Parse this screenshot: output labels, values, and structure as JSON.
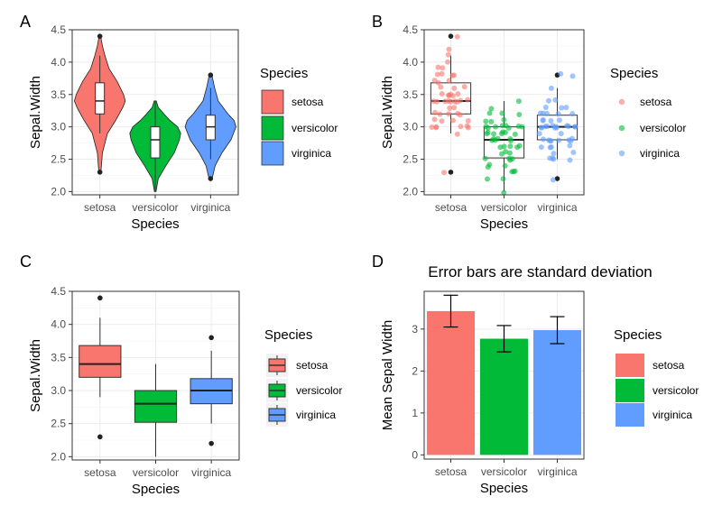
{
  "species_colors": {
    "setosa": "#F8766D",
    "versicolor": "#00BA38",
    "virginica": "#619CFF"
  },
  "panel_labels": [
    "A",
    "B",
    "C",
    "D"
  ],
  "chart_data": [
    {
      "panel": "A",
      "type": "violin",
      "title": "",
      "xlabel": "Species",
      "ylabel": "Sepal.Width",
      "categories": [
        "setosa",
        "versicolor",
        "virginica"
      ],
      "ylim": [
        1.95,
        4.5
      ],
      "yticks": [
        2.0,
        2.5,
        3.0,
        3.5,
        4.0,
        4.5
      ],
      "ytick_labels": [
        "2.0",
        "2.5",
        "3.0",
        "3.5",
        "4.0",
        "4.5"
      ],
      "grid": true,
      "legend": {
        "title": "Species",
        "position": "right",
        "entries": [
          "setosa",
          "versicolor",
          "virginica"
        ]
      },
      "violins": [
        {
          "name": "setosa",
          "profile": [
            [
              2.3,
              0.04
            ],
            [
              2.6,
              0.1
            ],
            [
              2.9,
              0.3
            ],
            [
              3.1,
              0.62
            ],
            [
              3.3,
              0.9
            ],
            [
              3.4,
              1.0
            ],
            [
              3.5,
              0.93
            ],
            [
              3.7,
              0.68
            ],
            [
              3.9,
              0.36
            ],
            [
              4.1,
              0.2
            ],
            [
              4.25,
              0.1
            ],
            [
              4.4,
              0.03
            ]
          ]
        },
        {
          "name": "versicolor",
          "profile": [
            [
              2.0,
              0.03
            ],
            [
              2.2,
              0.12
            ],
            [
              2.4,
              0.42
            ],
            [
              2.6,
              0.75
            ],
            [
              2.8,
              0.95
            ],
            [
              2.9,
              1.0
            ],
            [
              3.0,
              0.88
            ],
            [
              3.1,
              0.58
            ],
            [
              3.2,
              0.34
            ],
            [
              3.3,
              0.12
            ],
            [
              3.4,
              0.04
            ]
          ]
        },
        {
          "name": "virginica",
          "profile": [
            [
              2.2,
              0.06
            ],
            [
              2.4,
              0.18
            ],
            [
              2.6,
              0.45
            ],
            [
              2.8,
              0.8
            ],
            [
              3.0,
              1.0
            ],
            [
              3.1,
              0.92
            ],
            [
              3.2,
              0.68
            ],
            [
              3.4,
              0.3
            ],
            [
              3.6,
              0.16
            ],
            [
              3.8,
              0.05
            ]
          ]
        }
      ],
      "boxes": [
        {
          "name": "setosa",
          "min": 2.9,
          "q1": 3.2,
          "median": 3.4,
          "q3": 3.68,
          "max": 4.1,
          "outliers": [
            2.3,
            4.4
          ]
        },
        {
          "name": "versicolor",
          "min": 2.0,
          "q1": 2.52,
          "median": 2.8,
          "q3": 3.0,
          "max": 3.4,
          "outliers": []
        },
        {
          "name": "virginica",
          "min": 2.5,
          "q1": 2.8,
          "median": 3.0,
          "q3": 3.18,
          "max": 3.6,
          "outliers": [
            2.2,
            3.8
          ]
        }
      ]
    },
    {
      "panel": "B",
      "type": "box+jitter",
      "title": "",
      "xlabel": "Species",
      "ylabel": "Sepal.Width",
      "categories": [
        "setosa",
        "versicolor",
        "virginica"
      ],
      "ylim": [
        1.95,
        4.5
      ],
      "yticks": [
        2.0,
        2.5,
        3.0,
        3.5,
        4.0,
        4.5
      ],
      "ytick_labels": [
        "2.0",
        "2.5",
        "3.0",
        "3.5",
        "4.0",
        "4.5"
      ],
      "grid": true,
      "legend": {
        "title": "Species",
        "position": "right",
        "entries": [
          "setosa",
          "versicolor",
          "virginica"
        ]
      },
      "boxes": [
        {
          "name": "setosa",
          "min": 2.9,
          "q1": 3.2,
          "median": 3.4,
          "q3": 3.68,
          "max": 4.1,
          "outliers": [
            2.3,
            4.4
          ]
        },
        {
          "name": "versicolor",
          "min": 2.0,
          "q1": 2.52,
          "median": 2.8,
          "q3": 3.0,
          "max": 3.4,
          "outliers": []
        },
        {
          "name": "virginica",
          "min": 2.5,
          "q1": 2.8,
          "median": 3.0,
          "q3": 3.18,
          "max": 3.6,
          "outliers": [
            2.2,
            3.8
          ]
        }
      ],
      "points": [
        {
          "name": "setosa",
          "values": [
            3.5,
            3.0,
            3.2,
            3.1,
            3.6,
            3.9,
            3.4,
            3.4,
            2.9,
            3.1,
            3.7,
            3.4,
            3.0,
            3.0,
            4.0,
            4.4,
            3.9,
            3.5,
            3.8,
            3.8,
            3.4,
            3.7,
            3.6,
            3.3,
            3.4,
            3.0,
            3.4,
            3.5,
            3.4,
            3.2,
            3.1,
            3.4,
            4.1,
            4.2,
            3.1,
            3.2,
            3.5,
            3.6,
            3.0,
            3.4,
            3.5,
            2.3,
            3.2,
            3.5,
            3.8,
            3.0,
            3.8,
            3.2,
            3.7,
            3.3
          ]
        },
        {
          "name": "versicolor",
          "values": [
            3.2,
            3.2,
            3.1,
            2.3,
            2.8,
            2.8,
            3.3,
            2.4,
            2.9,
            2.7,
            2.0,
            3.0,
            2.2,
            2.9,
            2.9,
            3.1,
            3.0,
            2.7,
            2.2,
            2.5,
            3.2,
            2.8,
            2.5,
            2.8,
            2.9,
            3.0,
            2.8,
            3.0,
            2.9,
            2.6,
            2.4,
            2.4,
            2.7,
            2.7,
            3.0,
            3.4,
            3.1,
            2.3,
            3.0,
            2.5,
            2.6,
            3.0,
            2.6,
            2.3,
            2.7,
            3.0,
            2.9,
            2.9,
            2.5,
            2.8
          ]
        },
        {
          "name": "virginica",
          "values": [
            3.3,
            2.7,
            3.0,
            2.9,
            3.0,
            3.0,
            2.5,
            2.9,
            2.5,
            3.6,
            3.2,
            2.7,
            3.0,
            2.5,
            2.8,
            3.2,
            3.0,
            3.8,
            2.6,
            2.2,
            3.2,
            2.8,
            2.8,
            2.7,
            3.3,
            3.2,
            2.8,
            3.0,
            2.8,
            3.0,
            2.8,
            3.8,
            2.8,
            2.8,
            2.6,
            3.0,
            3.4,
            3.1,
            3.0,
            3.1,
            3.1,
            3.1,
            2.7,
            3.2,
            3.3,
            3.0,
            2.5,
            3.0,
            3.4,
            3.0
          ]
        }
      ]
    },
    {
      "panel": "C",
      "type": "box",
      "title": "",
      "xlabel": "Species",
      "ylabel": "Sepal.Width",
      "categories": [
        "setosa",
        "versicolor",
        "virginica"
      ],
      "ylim": [
        1.95,
        4.5
      ],
      "yticks": [
        2.0,
        2.5,
        3.0,
        3.5,
        4.0,
        4.5
      ],
      "ytick_labels": [
        "2.0",
        "2.5",
        "3.0",
        "3.5",
        "4.0",
        "4.5"
      ],
      "grid": true,
      "legend": {
        "title": "Species",
        "position": "right",
        "entries": [
          "setosa",
          "versicolor",
          "virginica"
        ]
      },
      "boxes": [
        {
          "name": "setosa",
          "min": 2.9,
          "q1": 3.2,
          "median": 3.4,
          "q3": 3.68,
          "max": 4.1,
          "outliers": [
            2.3,
            4.4
          ]
        },
        {
          "name": "versicolor",
          "min": 2.0,
          "q1": 2.52,
          "median": 2.8,
          "q3": 3.0,
          "max": 3.4,
          "outliers": []
        },
        {
          "name": "virginica",
          "min": 2.5,
          "q1": 2.8,
          "median": 3.0,
          "q3": 3.18,
          "max": 3.6,
          "outliers": [
            2.2,
            3.8
          ]
        }
      ]
    },
    {
      "panel": "D",
      "type": "bar",
      "title": "Error bars are standard deviation",
      "xlabel": "Species",
      "ylabel": "Mean Sepal Width",
      "categories": [
        "setosa",
        "versicolor",
        "virginica"
      ],
      "values": [
        3.428,
        2.77,
        2.974
      ],
      "error": [
        0.379,
        0.314,
        0.322
      ],
      "ylim": [
        -0.1,
        3.9
      ],
      "yticks": [
        0,
        1,
        2,
        3
      ],
      "ytick_labels": [
        "0",
        "1",
        "2",
        "3"
      ],
      "grid": true,
      "legend": {
        "title": "Species",
        "position": "right",
        "entries": [
          "setosa",
          "versicolor",
          "virginica"
        ]
      }
    }
  ]
}
